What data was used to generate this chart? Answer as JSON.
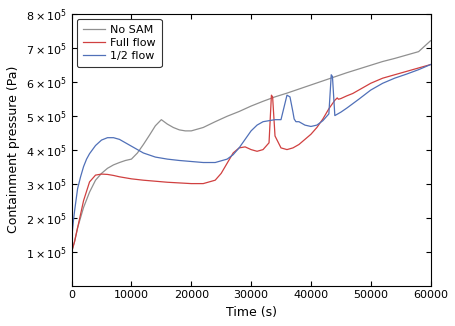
{
  "title": "",
  "xlabel": "Time (s)",
  "ylabel": "Containment pressure (Pa)",
  "xlim": [
    0,
    60000
  ],
  "ylim": [
    0,
    800000.0
  ],
  "legend": [
    "No SAM",
    "Full flow",
    "1/2 flow"
  ],
  "legend_colors": [
    "#909090",
    "#d04040",
    "#5070b8"
  ],
  "no_sam": {
    "x": [
      0,
      100,
      500,
      1000,
      2000,
      3000,
      4000,
      5000,
      6000,
      7000,
      8000,
      9000,
      10000,
      11000,
      12000,
      13000,
      14000,
      15000,
      16000,
      17000,
      18000,
      19000,
      20000,
      22000,
      24000,
      26000,
      28000,
      30000,
      32000,
      34000,
      36000,
      38000,
      40000,
      42000,
      44000,
      46000,
      48000,
      50000,
      52000,
      54000,
      56000,
      58000,
      60000
    ],
    "y": [
      100000.0,
      105000.0,
      130000.0,
      170000.0,
      230000.0,
      275000.0,
      310000.0,
      330000.0,
      345000.0,
      355000.0,
      362000.0,
      368000.0,
      372000.0,
      390000.0,
      415000.0,
      442000.0,
      470000.0,
      488000.0,
      475000.0,
      465000.0,
      458000.0,
      455000.0,
      455000.0,
      465000.0,
      482000.0,
      498000.0,
      512000.0,
      528000.0,
      542000.0,
      555000.0,
      566000.0,
      578000.0,
      590000.0,
      602000.0,
      614000.0,
      626000.0,
      637000.0,
      648000.0,
      659000.0,
      668000.0,
      678000.0,
      688000.0,
      720000.0
    ]
  },
  "full_flow": {
    "x": [
      0,
      100,
      500,
      1000,
      2000,
      3000,
      4000,
      5000,
      6000,
      7000,
      8000,
      9000,
      10000,
      12000,
      14000,
      16000,
      18000,
      20000,
      22000,
      24000,
      25000,
      26000,
      27000,
      28000,
      29000,
      30000,
      31000,
      32000,
      33000,
      33400,
      33600,
      34000,
      35000,
      36000,
      37000,
      38000,
      39000,
      40000,
      41000,
      42000,
      43000,
      44000,
      44400,
      44600,
      45000,
      46000,
      47000,
      48000,
      49000,
      50000,
      52000,
      54000,
      56000,
      58000,
      60000
    ],
    "y": [
      100000.0,
      105000.0,
      130000.0,
      170000.0,
      250000.0,
      305000.0,
      325000.0,
      328000.0,
      327000.0,
      324000.0,
      320000.0,
      317000.0,
      314000.0,
      310000.0,
      307000.0,
      304000.0,
      302000.0,
      300000.0,
      300000.0,
      310000.0,
      330000.0,
      360000.0,
      390000.0,
      405000.0,
      408000.0,
      400000.0,
      395000.0,
      400000.0,
      420000.0,
      560000.0,
      555000.0,
      440000.0,
      405000.0,
      400000.0,
      405000.0,
      415000.0,
      430000.0,
      445000.0,
      465000.0,
      490000.0,
      520000.0,
      545000.0,
      552000.0,
      548000.0,
      550000.0,
      558000.0,
      565000.0,
      575000.0,
      585000.0,
      595000.0,
      610000.0,
      620000.0,
      630000.0,
      640000.0,
      650000.0
    ]
  },
  "half_flow": {
    "x": [
      0,
      100,
      300,
      500,
      1000,
      1500,
      2000,
      2500,
      3000,
      4000,
      5000,
      6000,
      7000,
      8000,
      9000,
      10000,
      12000,
      14000,
      16000,
      18000,
      20000,
      22000,
      24000,
      26000,
      27000,
      28000,
      29000,
      30000,
      31000,
      32000,
      33000,
      34000,
      35000,
      36000,
      36500,
      37000,
      37200,
      37500,
      38000,
      39000,
      40000,
      41000,
      42000,
      43000,
      43400,
      43600,
      44000,
      45000,
      46000,
      48000,
      50000,
      52000,
      54000,
      56000,
      58000,
      60000
    ],
    "y": [
      135000.0,
      155000.0,
      190000.0,
      220000.0,
      285000.0,
      320000.0,
      350000.0,
      372000.0,
      388000.0,
      412000.0,
      428000.0,
      435000.0,
      435000.0,
      430000.0,
      420000.0,
      410000.0,
      390000.0,
      378000.0,
      372000.0,
      368000.0,
      365000.0,
      362000.0,
      362000.0,
      372000.0,
      385000.0,
      405000.0,
      430000.0,
      455000.0,
      472000.0,
      482000.0,
      485000.0,
      488000.0,
      488000.0,
      560000.0,
      555000.0,
      510000.0,
      490000.0,
      482000.0,
      482000.0,
      472000.0,
      468000.0,
      472000.0,
      485000.0,
      505000.0,
      620000.0,
      615000.0,
      500000.0,
      510000.0,
      522000.0,
      548000.0,
      575000.0,
      595000.0,
      610000.0,
      622000.0,
      635000.0,
      650000.0
    ]
  }
}
